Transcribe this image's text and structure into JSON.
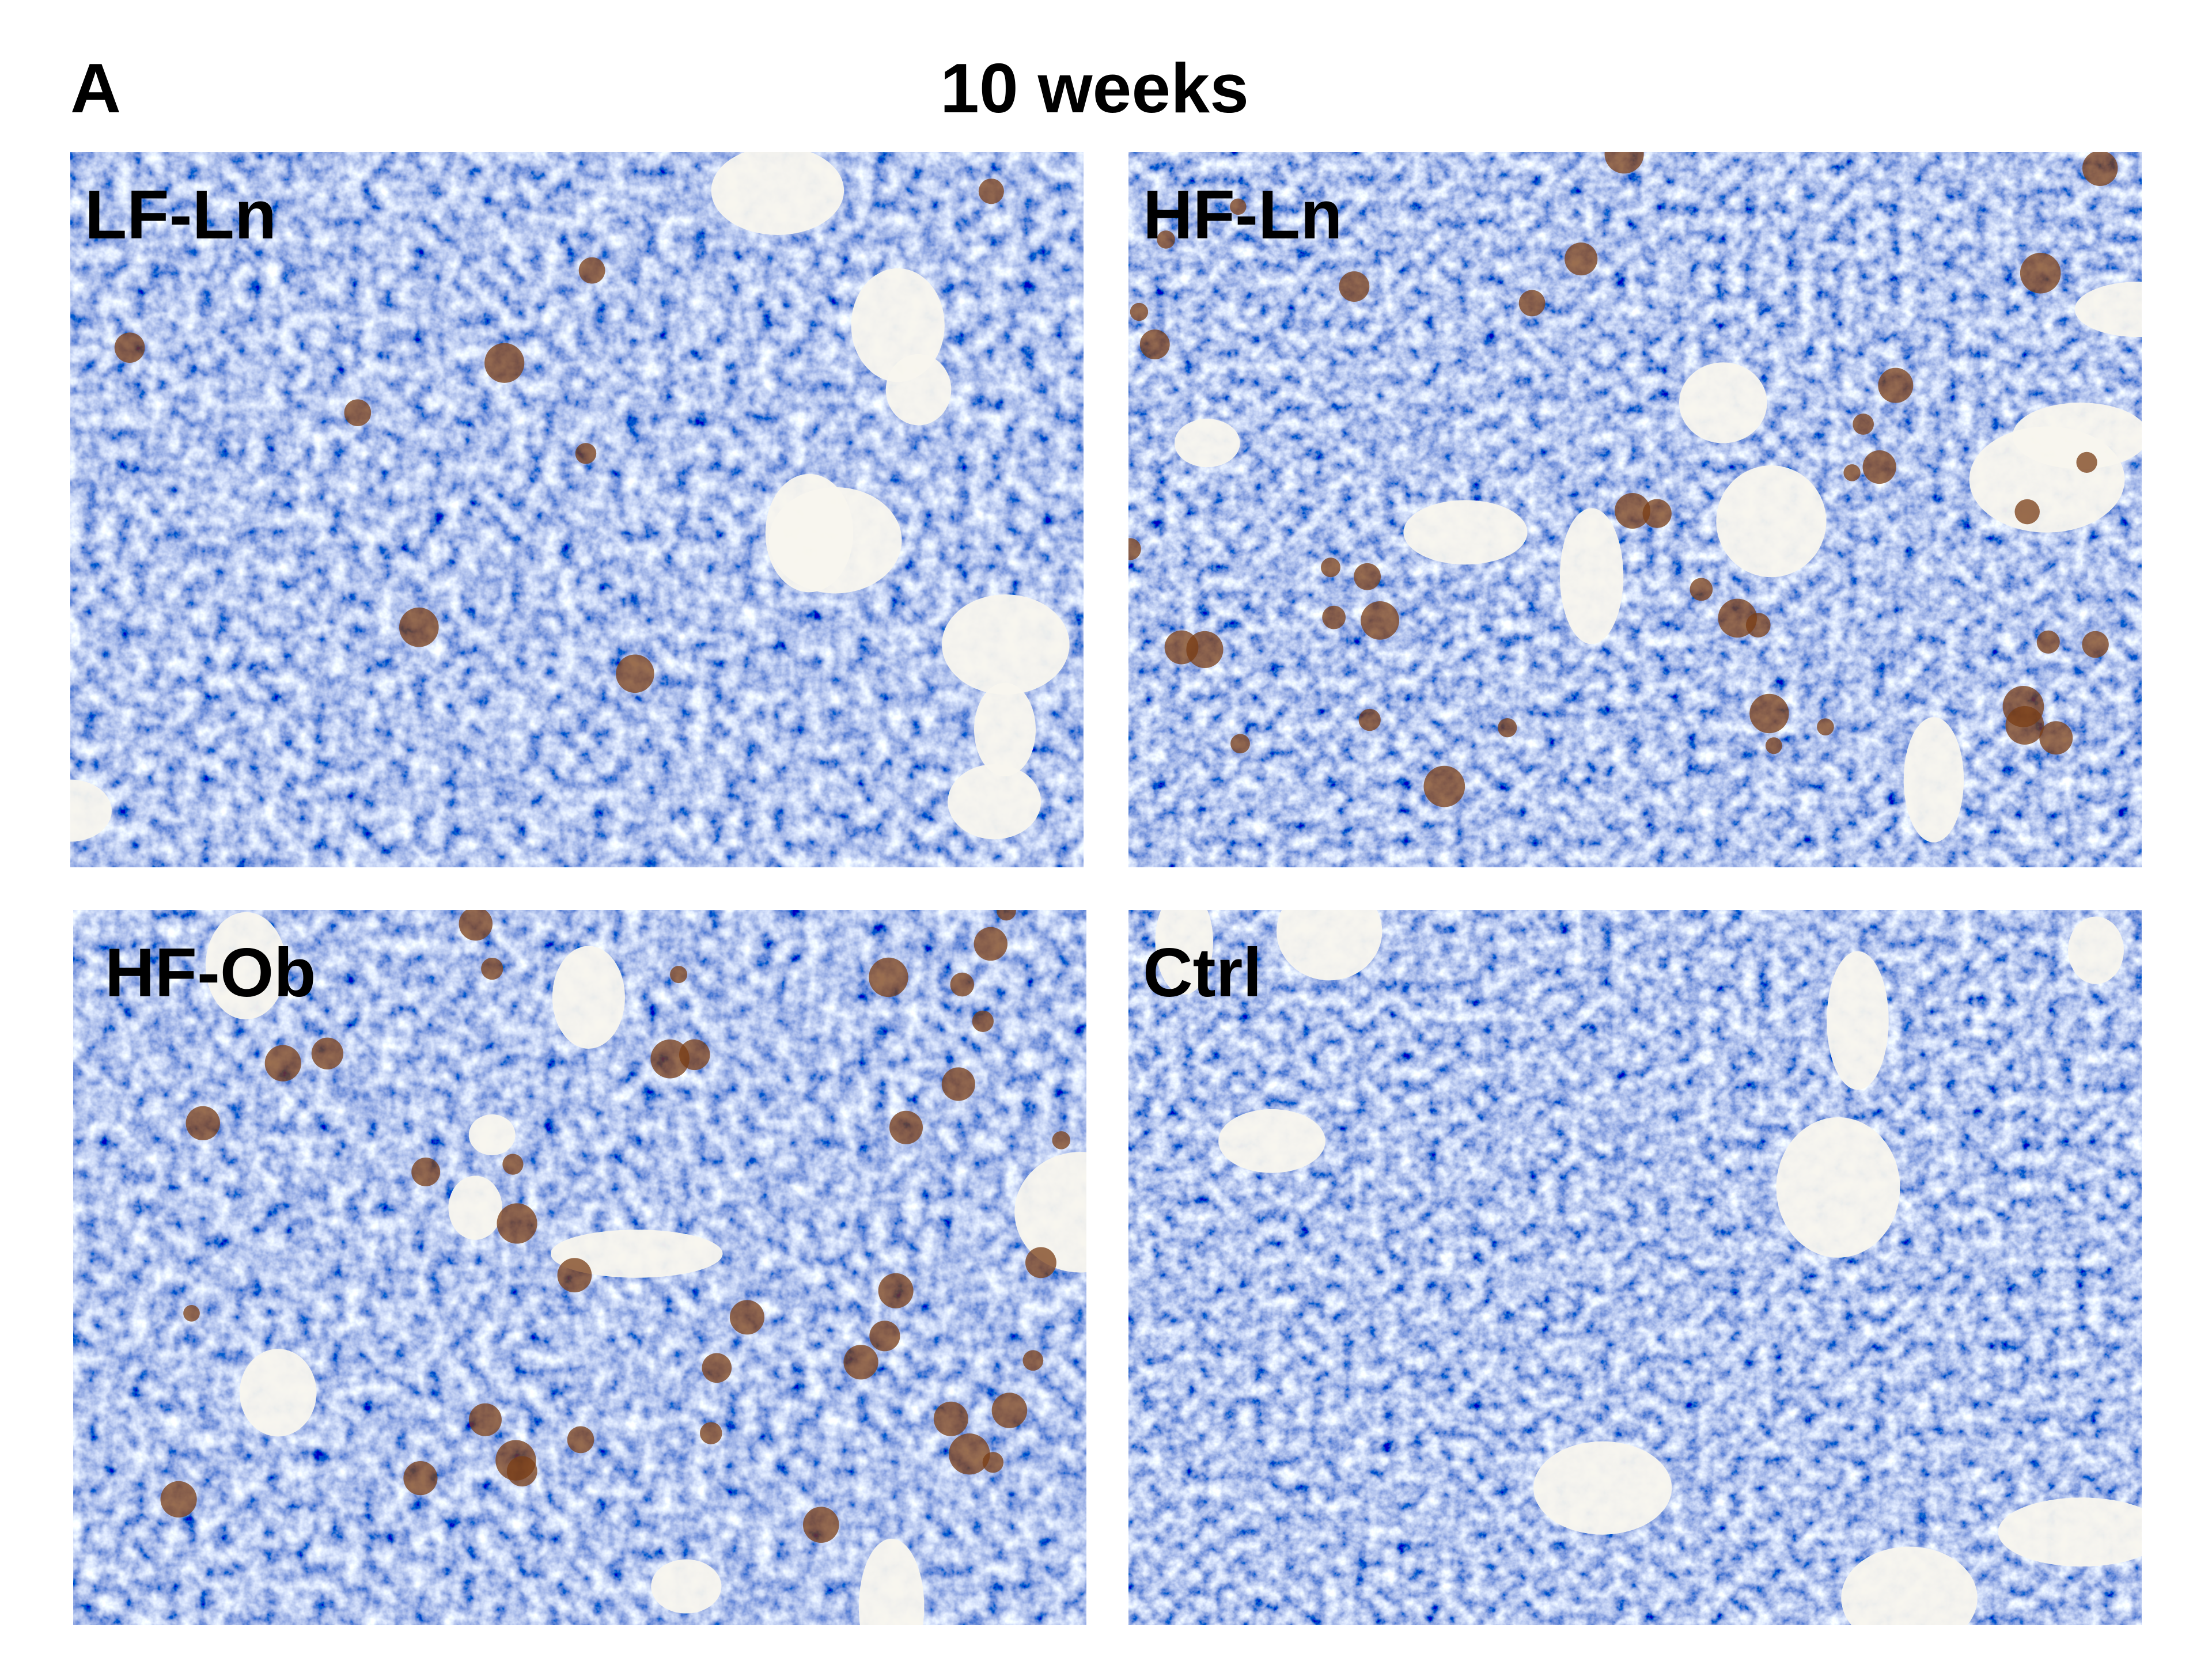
{
  "figure": {
    "label": "A",
    "title": "10 weeks",
    "panels": [
      {
        "label": "LF-Ln"
      },
      {
        "label": "HF-Ln"
      },
      {
        "label": "HF-Ob"
      },
      {
        "label": "Ctrl"
      }
    ]
  }
}
